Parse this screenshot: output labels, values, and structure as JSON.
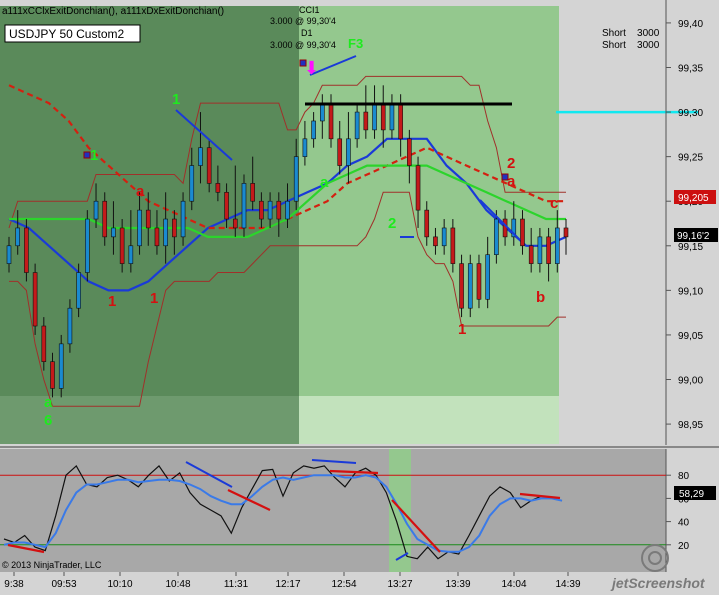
{
  "indicator_header": "a111xCClxExitDonchian(), a111xDxExitDonchian()",
  "instrument_label": "USDJPY 50 Custom2",
  "copyright": "© 2013 NinjaTrader, LLC",
  "watermark": "jetScreenshot",
  "annotations": {
    "cci_tag": "CCI1",
    "cci_price": "3.000 @ 99,30'4",
    "d1_tag": "D1",
    "d1_price": "3.000 @ 99,30'4",
    "f3": "F3",
    "short1": "Short    3000",
    "short2": "Short    3000"
  },
  "price_labels": {
    "last": "99,16'2",
    "red": "99,205",
    "cci_last": "58,29"
  },
  "colors": {
    "dark_bg": "#5a8a5a",
    "light_bg": "#94c88e",
    "band": "#a0302a",
    "ma_blue": "#1a3ad8",
    "ma_red": "#d42010",
    "ma_green": "#2cd42c",
    "up_candle": "#1a8ad0",
    "down_candle": "#c41a1a",
    "cyan": "#10e8f0",
    "marker_green": "#1eea1e",
    "marker_red": "#d41010"
  },
  "chart_data": [
    {
      "type": "candlestick",
      "title": "USDJPY 50 Custom2",
      "ylim": [
        98.92,
        99.42
      ],
      "y_ticks": [
        "99,40",
        "99,35",
        "99,30",
        "99,25",
        "99,20",
        "99,15",
        "99,10",
        "99,05",
        "99,00",
        "98,95"
      ],
      "y_tick_values": [
        99.4,
        99.35,
        99.3,
        99.25,
        99.2,
        99.15,
        99.1,
        99.05,
        99.0,
        98.95
      ],
      "x_ticks": [
        "9:38",
        "09:53",
        "10:10",
        "10:48",
        "11:31",
        "12:17",
        "12:54",
        "13:27",
        "13:39",
        "14:04",
        "14:39"
      ],
      "candles": [
        [
          99.13,
          99.15,
          99.16,
          99.12
        ],
        [
          99.15,
          99.17,
          99.19,
          99.14
        ],
        [
          99.17,
          99.12,
          99.18,
          99.11
        ],
        [
          99.12,
          99.06,
          99.13,
          99.05
        ],
        [
          99.06,
          99.02,
          99.07,
          99.01
        ],
        [
          99.02,
          98.99,
          99.03,
          98.98
        ],
        [
          98.99,
          99.04,
          99.05,
          98.98
        ],
        [
          99.04,
          99.08,
          99.09,
          99.03
        ],
        [
          99.08,
          99.12,
          99.13,
          99.07
        ],
        [
          99.12,
          99.18,
          99.19,
          99.11
        ],
        [
          99.18,
          99.2,
          99.22,
          99.17
        ],
        [
          99.2,
          99.16,
          99.21,
          99.15
        ],
        [
          99.16,
          99.17,
          99.2,
          99.14
        ],
        [
          99.17,
          99.13,
          99.18,
          99.12
        ],
        [
          99.13,
          99.15,
          99.19,
          99.12
        ],
        [
          99.15,
          99.19,
          99.21,
          99.14
        ],
        [
          99.19,
          99.17,
          99.21,
          99.15
        ],
        [
          99.17,
          99.15,
          99.19,
          99.14
        ],
        [
          99.15,
          99.18,
          99.21,
          99.13
        ],
        [
          99.18,
          99.16,
          99.19,
          99.14
        ],
        [
          99.16,
          99.2,
          99.21,
          99.15
        ],
        [
          99.2,
          99.24,
          99.26,
          99.19
        ],
        [
          99.24,
          99.26,
          99.3,
          99.22
        ],
        [
          99.26,
          99.22,
          99.27,
          99.21
        ],
        [
          99.22,
          99.21,
          99.24,
          99.2
        ],
        [
          99.21,
          99.18,
          99.22,
          99.17
        ],
        [
          99.18,
          99.17,
          99.24,
          99.16
        ],
        [
          99.17,
          99.22,
          99.23,
          99.16
        ],
        [
          99.22,
          99.2,
          99.25,
          99.19
        ],
        [
          99.2,
          99.18,
          99.21,
          99.17
        ],
        [
          99.18,
          99.2,
          99.21,
          99.17
        ],
        [
          99.2,
          99.18,
          99.21,
          99.16
        ],
        [
          99.18,
          99.2,
          99.22,
          99.17
        ],
        [
          99.2,
          99.25,
          99.27,
          99.19
        ],
        [
          99.25,
          99.27,
          99.29,
          99.24
        ],
        [
          99.27,
          99.29,
          99.3,
          99.26
        ],
        [
          99.29,
          99.31,
          99.32,
          99.27
        ],
        [
          99.31,
          99.27,
          99.32,
          99.26
        ],
        [
          99.27,
          99.24,
          99.29,
          99.23
        ],
        [
          99.24,
          99.27,
          99.3,
          99.22
        ],
        [
          99.27,
          99.3,
          99.31,
          99.26
        ],
        [
          99.3,
          99.28,
          99.33,
          99.27
        ],
        [
          99.28,
          99.31,
          99.33,
          99.27
        ],
        [
          99.31,
          99.28,
          99.33,
          99.26
        ],
        [
          99.28,
          99.31,
          99.32,
          99.27
        ],
        [
          99.31,
          99.27,
          99.32,
          99.25
        ],
        [
          99.27,
          99.24,
          99.28,
          99.22
        ],
        [
          99.24,
          99.19,
          99.25,
          99.17
        ],
        [
          99.19,
          99.16,
          99.2,
          99.15
        ],
        [
          99.16,
          99.15,
          99.17,
          99.14
        ],
        [
          99.15,
          99.17,
          99.18,
          99.14
        ],
        [
          99.17,
          99.13,
          99.18,
          99.12
        ],
        [
          99.13,
          99.08,
          99.14,
          99.07
        ],
        [
          99.08,
          99.13,
          99.14,
          99.07
        ],
        [
          99.13,
          99.09,
          99.14,
          99.08
        ],
        [
          99.09,
          99.14,
          99.16,
          99.08
        ],
        [
          99.14,
          99.18,
          99.19,
          99.13
        ],
        [
          99.18,
          99.16,
          99.19,
          99.15
        ],
        [
          99.16,
          99.18,
          99.2,
          99.15
        ],
        [
          99.18,
          99.15,
          99.19,
          99.14
        ],
        [
          99.15,
          99.13,
          99.17,
          99.12
        ],
        [
          99.13,
          99.16,
          99.17,
          99.12
        ],
        [
          99.16,
          99.13,
          99.17,
          99.11
        ],
        [
          99.13,
          99.17,
          99.19,
          99.12
        ],
        [
          99.17,
          99.16,
          99.18,
          99.14
        ]
      ],
      "series": [
        {
          "name": "",
          "values": [
            99.18,
            99.17,
            99.15,
            99.13,
            99.11,
            99.1,
            99.1,
            99.11,
            99.13,
            99.15,
            99.17,
            99.18,
            99.19,
            99.19,
            99.2,
            99.21,
            99.22,
            99.24,
            99.25,
            99.27,
            99.27,
            99.27,
            99.24,
            99.22,
            99.19,
            99.17,
            99.15,
            99.15,
            99.16
          ]
        },
        {
          "name": "",
          "values": [
            99.33,
            99.32,
            99.31,
            99.29,
            99.26,
            99.24,
            99.22,
            99.2,
            99.19,
            99.18,
            99.17,
            99.17,
            99.17,
            99.17,
            99.18,
            99.19,
            99.2,
            99.22,
            99.23,
            99.24,
            99.25,
            99.26,
            99.25,
            99.24,
            99.23,
            99.22,
            99.21,
            99.2,
            99.2
          ]
        },
        {
          "name": "",
          "values": [
            99.18,
            99.18,
            99.18,
            99.18,
            99.18,
            99.17,
            99.17,
            99.17,
            99.17,
            99.17,
            99.16,
            99.16,
            99.16,
            99.17,
            99.18,
            99.2,
            99.22,
            99.23,
            99.24,
            99.24,
            99.24,
            99.24,
            99.23,
            99.22,
            99.21,
            99.2,
            99.19,
            99.18,
            99.18
          ]
        }
      ],
      "markers": [
        {
          "text": "a",
          "color": "green"
        },
        {
          "text": "6",
          "color": "green"
        },
        {
          "text": "1",
          "color": "green"
        },
        {
          "text": "1",
          "color": "green"
        },
        {
          "text": "a",
          "color": "green"
        },
        {
          "text": "2",
          "color": "green"
        },
        {
          "text": "1",
          "color": "red"
        },
        {
          "text": "1",
          "color": "red"
        },
        {
          "text": "a",
          "color": "red"
        },
        {
          "text": "1",
          "color": "red"
        },
        {
          "text": "2",
          "color": "red"
        },
        {
          "text": "a",
          "color": "red"
        },
        {
          "text": "b",
          "color": "red"
        },
        {
          "text": "c",
          "color": "red"
        }
      ]
    },
    {
      "type": "line",
      "title": "",
      "ylim": [
        0,
        100
      ],
      "y_ticks": [
        "80",
        "60",
        "40",
        "20"
      ],
      "y_tick_values": [
        80,
        60,
        40,
        20
      ],
      "hlines": [
        80,
        20
      ],
      "series": [
        {
          "name": "",
          "values": [
            25,
            22,
            28,
            18,
            15,
            45,
            80,
            88,
            72,
            70,
            78,
            80,
            76,
            70,
            80,
            88,
            75,
            82,
            65,
            55,
            50,
            45,
            30,
            52,
            68,
            84,
            85,
            62,
            82,
            88,
            86,
            88,
            78,
            70,
            82,
            86,
            80,
            65,
            40,
            10,
            8,
            18,
            8,
            14,
            12,
            28,
            45,
            62,
            70,
            65,
            52,
            58,
            62,
            60,
            58
          ]
        },
        {
          "name": "",
          "values": [
            20,
            22,
            22,
            20,
            18,
            30,
            50,
            65,
            72,
            72,
            74,
            76,
            76,
            74,
            75,
            76,
            76,
            75,
            72,
            68,
            62,
            58,
            55,
            55,
            62,
            70,
            76,
            78,
            76,
            78,
            80,
            80,
            80,
            78,
            78,
            80,
            78,
            70,
            55,
            38,
            25,
            20,
            15,
            14,
            14,
            18,
            28,
            45,
            55,
            60,
            60,
            58,
            60,
            60,
            58
          ]
        }
      ]
    }
  ]
}
